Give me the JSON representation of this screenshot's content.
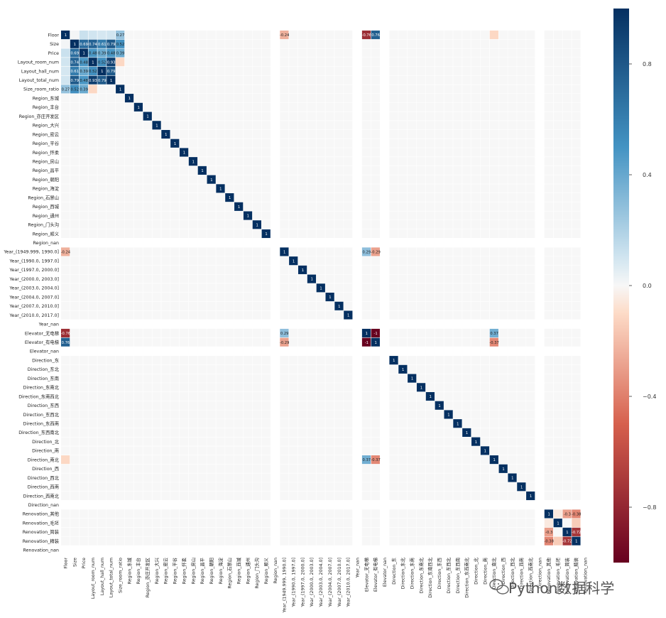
{
  "chart_data": {
    "type": "heatmap",
    "labels": [
      "Floor",
      "Size",
      "Price",
      "Layout_room_num",
      "Layout_hall_num",
      "Layout_total_num",
      "Size_room_ratio",
      "Region_东城",
      "Region_丰台",
      "Region_亦庄开发区",
      "Region_大兴",
      "Region_密云",
      "Region_平谷",
      "Region_怀柔",
      "Region_房山",
      "Region_昌平",
      "Region_朝阳",
      "Region_海淀",
      "Region_石景山",
      "Region_西城",
      "Region_通州",
      "Region_门头沟",
      "Region_顺义",
      "Region_nan",
      "Year_(1949.999, 1990.0]",
      "Year_(1990.0, 1997.0]",
      "Year_(1997.0, 2000.0]",
      "Year_(2000.0, 2003.0]",
      "Year_(2003.0, 2004.0]",
      "Year_(2004.0, 2007.0]",
      "Year_(2007.0, 2010.0]",
      "Year_(2010.0, 2017.0]",
      "Year_nan",
      "Elevator_无电梯",
      "Elevator_有电梯",
      "Elevator_nan",
      "Direction_东",
      "Direction_东北",
      "Direction_东南",
      "Direction_东南北",
      "Direction_东南西北",
      "Direction_东西",
      "Direction_东西北",
      "Direction_东西南",
      "Direction_东西南北",
      "Direction_北",
      "Direction_南",
      "Direction_南北",
      "Direction_西",
      "Direction_西北",
      "Direction_西南",
      "Direction_西南北",
      "Direction_nan",
      "Renovation_其他",
      "Renovation_毛坯",
      "Renovation_简装",
      "Renovation_精装",
      "Renovation_nan"
    ],
    "empty_labels": [
      "Region_nan",
      "Year_nan",
      "Elevator_nan",
      "Direction_nan",
      "Renovation_nan"
    ],
    "correlations": [
      {
        "a": "Floor",
        "b": "Size",
        "value": 0.01
      },
      {
        "a": "Floor",
        "b": "Price",
        "value": 0.12
      },
      {
        "a": "Floor",
        "b": "Layout_room_num",
        "value": 0.1
      },
      {
        "a": "Floor",
        "b": "Layout_hall_num",
        "value": 0.09
      },
      {
        "a": "Floor",
        "b": "Layout_total_num",
        "value": 0.1
      },
      {
        "a": "Floor",
        "b": "Size_room_ratio",
        "value": 0.27
      },
      {
        "a": "Floor",
        "b": "Year_(1949.999, 1990.0]",
        "value": -0.24
      },
      {
        "a": "Floor",
        "b": "Elevator_无电梯",
        "value": -0.76
      },
      {
        "a": "Floor",
        "b": "Elevator_有电梯",
        "value": 0.76
      },
      {
        "a": "Floor",
        "b": "Direction_南北",
        "value": -0.11
      },
      {
        "a": "Size",
        "b": "Price",
        "value": 0.69
      },
      {
        "a": "Size",
        "b": "Layout_room_num",
        "value": 0.74
      },
      {
        "a": "Size",
        "b": "Layout_hall_num",
        "value": 0.61
      },
      {
        "a": "Size",
        "b": "Layout_total_num",
        "value": 0.79
      },
      {
        "a": "Size",
        "b": "Size_room_ratio",
        "value": 0.52
      },
      {
        "a": "Price",
        "b": "Layout_room_num",
        "value": 0.48
      },
      {
        "a": "Price",
        "b": "Layout_hall_num",
        "value": 0.39
      },
      {
        "a": "Price",
        "b": "Layout_total_num",
        "value": 0.48
      },
      {
        "a": "Price",
        "b": "Size_room_ratio",
        "value": 0.39
      },
      {
        "a": "Layout_room_num",
        "b": "Layout_hall_num",
        "value": 0.52
      },
      {
        "a": "Layout_room_num",
        "b": "Layout_total_num",
        "value": 0.93
      },
      {
        "a": "Layout_hall_num",
        "b": "Layout_total_num",
        "value": 0.79
      },
      {
        "a": "Layout_room_num",
        "b": "Size_room_ratio",
        "value": -0.11
      },
      {
        "a": "Elevator_无电梯",
        "b": "Elevator_有电梯",
        "value": -1
      },
      {
        "a": "Elevator_无电梯",
        "b": "Year_(1949.999, 1990.0]",
        "value": 0.29
      },
      {
        "a": "Elevator_有电梯",
        "b": "Year_(1949.999, 1990.0]",
        "value": -0.29
      },
      {
        "a": "Elevator_无电梯",
        "b": "Direction_南北",
        "value": 0.37
      },
      {
        "a": "Elevator_有电梯",
        "b": "Direction_南北",
        "value": -0.37
      },
      {
        "a": "Renovation_其他",
        "b": "Renovation_毛坯",
        "value": -0.05
      },
      {
        "a": "Renovation_其他",
        "b": "Renovation_简装",
        "value": -0.3
      },
      {
        "a": "Renovation_其他",
        "b": "Renovation_精装",
        "value": -0.38
      },
      {
        "a": "Renovation_简装",
        "b": "Renovation_精装",
        "value": -0.72
      },
      {
        "a": "Renovation_毛坯",
        "b": "Renovation_精装",
        "value": -0.15
      }
    ],
    "vmin": -1,
    "vmax": 1,
    "colormap": "RdBu_r",
    "colorbar_ticks": [
      0.8,
      0.4,
      0.0,
      -0.4,
      -0.8
    ],
    "colorbar_tick_labels": [
      "0.8",
      "0.4",
      "0.0",
      "−0.4",
      "−0.8"
    ],
    "annotated": true
  },
  "colors": {
    "neg_end": "#67001f",
    "neg_mid": "#d6604d",
    "neutral": "#f7f7f7",
    "pos_mid": "#4393c3",
    "pos_end": "#053061"
  },
  "watermark": {
    "icon": "wechat-logo-icon",
    "text": "Python数据科学"
  }
}
